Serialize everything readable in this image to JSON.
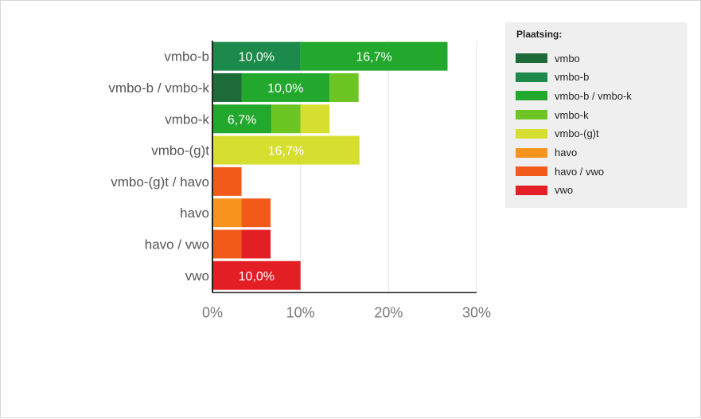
{
  "chart_data": {
    "type": "bar",
    "orientation": "horizontal",
    "stacked": true,
    "categories": [
      "vmbo-b",
      "vmbo-b / vmbo-k",
      "vmbo-k",
      "vmbo-(g)t",
      "vmbo-(g)t / havo",
      "havo",
      "havo / vwo",
      "vwo"
    ],
    "series": [
      {
        "name": "vmbo",
        "color": "#1e6b3a",
        "values": [
          0,
          3.3,
          0,
          0,
          0,
          0,
          0,
          0
        ]
      },
      {
        "name": "vmbo-b",
        "color": "#1b8a4a",
        "values": [
          10.0,
          0,
          0,
          0,
          0,
          0,
          0,
          0
        ]
      },
      {
        "name": "vmbo-b / vmbo-k",
        "color": "#22a82c",
        "values": [
          16.7,
          10.0,
          6.7,
          0,
          0,
          0,
          0,
          0
        ]
      },
      {
        "name": "vmbo-k",
        "color": "#6cc522",
        "values": [
          0,
          3.3,
          3.3,
          0,
          0,
          0,
          0,
          0
        ]
      },
      {
        "name": "vmbo-(g)t",
        "color": "#d6df2f",
        "values": [
          0,
          0,
          3.3,
          16.7,
          0,
          0,
          0,
          0
        ]
      },
      {
        "name": "havo",
        "color": "#f7941d",
        "values": [
          0,
          0,
          0,
          0,
          0,
          3.3,
          0,
          0
        ]
      },
      {
        "name": "havo / vwo",
        "color": "#f25a1a",
        "values": [
          0,
          0,
          0,
          0,
          3.3,
          3.3,
          3.3,
          0
        ]
      },
      {
        "name": "vwo",
        "color": "#e31e24",
        "values": [
          0,
          0,
          0,
          0,
          0,
          0,
          3.3,
          10.0
        ]
      }
    ],
    "data_labels": [
      [
        "10,0%",
        "16,7%"
      ],
      [
        "10,0%"
      ],
      [
        "6,7%"
      ],
      [
        "16,7%"
      ],
      [],
      [],
      [],
      [
        "10,0%"
      ]
    ],
    "xlim": [
      0,
      30
    ],
    "xticks": [
      "0%",
      "10%",
      "20%",
      "30%"
    ],
    "grid": true,
    "legend_position": "right",
    "legend_title": "Plaatsing:"
  }
}
